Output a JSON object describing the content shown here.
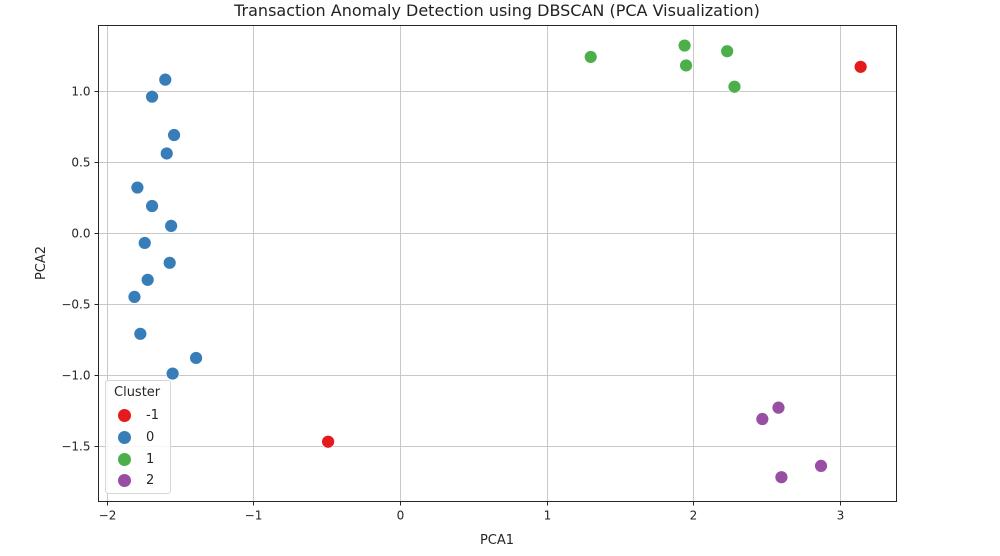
{
  "chart_data": {
    "type": "scatter",
    "title": "Transaction Anomaly Detection using DBSCAN (PCA Visualization)",
    "xlabel": "PCA1",
    "ylabel": "PCA2",
    "xlim": [
      -2.07,
      3.38
    ],
    "ylim": [
      -1.88,
      1.47
    ],
    "xticks": [
      -2,
      -1,
      0,
      1,
      2,
      3
    ],
    "xtick_labels": [
      "−2",
      "−1",
      "0",
      "1",
      "2",
      "3"
    ],
    "yticks": [
      1.0,
      0.5,
      0.0,
      -0.5,
      -1.0,
      -1.5
    ],
    "ytick_labels": [
      "1.0",
      "0.5",
      "0.0",
      "−0.5",
      "−1.0",
      "−1.5"
    ],
    "grid": true,
    "legend": {
      "title": "Cluster",
      "position": "lower left",
      "entries": [
        {
          "label": "-1",
          "color": "#e41a1c"
        },
        {
          "label": "0",
          "color": "#377eb8"
        },
        {
          "label": "1",
          "color": "#4daf4a"
        },
        {
          "label": "2",
          "color": "#984ea3"
        }
      ]
    },
    "series": [
      {
        "name": "-1",
        "color": "#e41a1c",
        "points": [
          [
            3.14,
            1.17
          ],
          [
            -0.49,
            -1.47
          ]
        ]
      },
      {
        "name": "0",
        "color": "#377eb8",
        "points": [
          [
            -1.6,
            1.08
          ],
          [
            -1.69,
            0.96
          ],
          [
            -1.54,
            0.69
          ],
          [
            -1.59,
            0.56
          ],
          [
            -1.79,
            0.32
          ],
          [
            -1.69,
            0.19
          ],
          [
            -1.56,
            0.05
          ],
          [
            -1.74,
            -0.07
          ],
          [
            -1.57,
            -0.21
          ],
          [
            -1.72,
            -0.33
          ],
          [
            -1.81,
            -0.45
          ],
          [
            -1.77,
            -0.71
          ],
          [
            -1.39,
            -0.88
          ],
          [
            -1.55,
            -0.99
          ]
        ]
      },
      {
        "name": "1",
        "color": "#4daf4a",
        "points": [
          [
            1.3,
            1.24
          ],
          [
            1.94,
            1.32
          ],
          [
            1.95,
            1.18
          ],
          [
            2.23,
            1.28
          ],
          [
            2.28,
            1.03
          ]
        ]
      },
      {
        "name": "2",
        "color": "#984ea3",
        "points": [
          [
            2.58,
            -1.23
          ],
          [
            2.47,
            -1.31
          ],
          [
            2.87,
            -1.64
          ],
          [
            2.6,
            -1.72
          ]
        ]
      }
    ]
  }
}
